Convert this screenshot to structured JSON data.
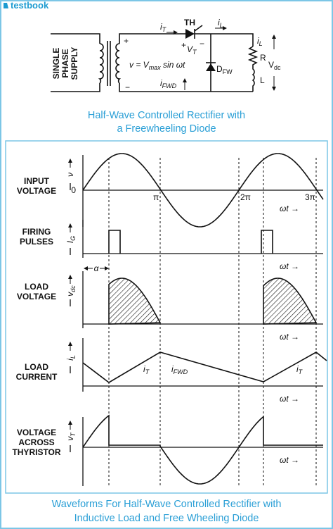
{
  "header": {
    "logo": "testbook"
  },
  "circuit": {
    "supply": [
      "SINGLE",
      "PHASE",
      "SUPPLY"
    ],
    "source": {
      "base": "v = V",
      "sub": "max",
      "tail": " sin ωt"
    },
    "plus": "+",
    "minus": "−",
    "thyristor": "TH",
    "it": {
      "base": "i",
      "sub": "T"
    },
    "vt": {
      "base": "V",
      "sub": "T"
    },
    "il": {
      "base": "i",
      "sub": "L"
    },
    "diode": {
      "base": "D",
      "sub": "FW"
    },
    "ifwd": {
      "base": "i",
      "sub": "FWD"
    },
    "r": "R",
    "l": "L",
    "vdc": {
      "base": "V",
      "sub": "dc"
    }
  },
  "caption_top": [
    "Half-Wave Controlled Rectifier with",
    "a Freewheeling Diode"
  ],
  "waveforms": {
    "panels": [
      {
        "label": [
          "INPUT",
          "VOLTAGE"
        ],
        "axis": {
          "base": "ν",
          "sub": ""
        }
      },
      {
        "label": [
          "FIRING",
          "PULSES"
        ],
        "axis": {
          "base": "I",
          "sub": "G"
        }
      },
      {
        "label": [
          "LOAD",
          "VOLTAGE"
        ],
        "axis": {
          "base": "v",
          "sub": "dc"
        }
      },
      {
        "label": [
          "LOAD",
          "CURRENT"
        ],
        "axis": {
          "base": "i",
          "sub": "L"
        }
      },
      {
        "label": [
          "VOLTAGE",
          "ACROSS",
          "THYRISTOR"
        ],
        "axis": {
          "base": "v",
          "sub": "T"
        }
      }
    ],
    "zero": "0",
    "pi": "π",
    "two_pi": "2π",
    "three_pi": "3π",
    "omega_t": "ωt →",
    "alpha": "α",
    "it": {
      "base": "i",
      "sub": "T"
    },
    "ifwd": {
      "base": "i",
      "sub": "FWD"
    }
  },
  "caption_bottom": [
    "Waveforms For Half-Wave Controlled Rectifier with",
    "Inductive Load and Free Wheeling Diode"
  ]
}
